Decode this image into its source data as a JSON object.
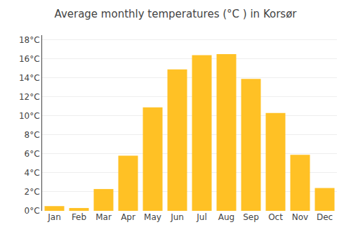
{
  "chart_data": {
    "type": "bar",
    "title": "Average monthly temperatures (°C ) in Korsør",
    "categories": [
      "Jan",
      "Feb",
      "Mar",
      "Apr",
      "May",
      "Jun",
      "Jul",
      "Aug",
      "Sep",
      "Oct",
      "Nov",
      "Dec"
    ],
    "values": [
      0.5,
      0.3,
      2.3,
      5.8,
      10.9,
      14.9,
      16.4,
      16.5,
      13.9,
      10.3,
      5.9,
      2.4
    ],
    "color": "#FFC125",
    "ylim": [
      0,
      18.5
    ],
    "yticks": [
      {
        "value": 0,
        "label": "0°C"
      },
      {
        "value": 2,
        "label": "2°C"
      },
      {
        "value": 4,
        "label": "4°C"
      },
      {
        "value": 6,
        "label": "6°C"
      },
      {
        "value": 8,
        "label": "8°C"
      },
      {
        "value": 10,
        "label": "10°C"
      },
      {
        "value": 12,
        "label": "12°C"
      },
      {
        "value": 14,
        "label": "14°C"
      },
      {
        "value": 16,
        "label": "16°C"
      },
      {
        "value": 18,
        "label": "18°C"
      }
    ],
    "grid": true
  }
}
